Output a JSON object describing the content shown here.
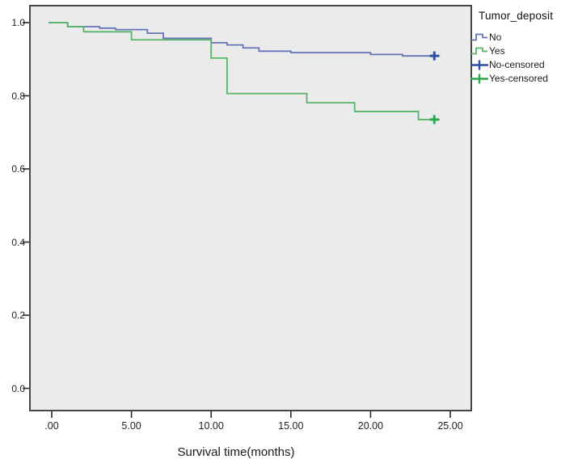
{
  "chart_data": {
    "type": "line",
    "chart_style": "kaplan-meier-step",
    "title": "",
    "xlabel": "Survival time(months)",
    "ylabel": "",
    "grid": false,
    "plot_background": "#ebebeb",
    "axis_color": "#464646",
    "legend_position": "outside-top-right",
    "x_ticks": [
      0,
      5,
      10,
      15,
      20,
      25
    ],
    "x_tick_labels": [
      ".00",
      "5.00",
      "10.00",
      "15.00",
      "20.00",
      "25.00"
    ],
    "y_ticks": [
      1.0,
      0.8,
      0.6,
      0.4,
      0.2,
      0.0
    ],
    "y_tick_labels": [
      "1.0",
      "0.8",
      "0.6",
      "0.4",
      "0.2",
      "0.0"
    ],
    "xlim": [
      -1.4,
      26.4
    ],
    "ylim": [
      -0.06,
      1.05
    ],
    "series": [
      {
        "name": "No",
        "color": "#6674b8",
        "censor_color": "#2e4da0",
        "line_end_x": 24.35,
        "points": [
          [
            0,
            1.0
          ],
          [
            1,
            0.989
          ],
          [
            3,
            0.985
          ],
          [
            4,
            0.981
          ],
          [
            6,
            0.971
          ],
          [
            7,
            0.957
          ],
          [
            10,
            0.945
          ],
          [
            11,
            0.939
          ],
          [
            12,
            0.931
          ],
          [
            13,
            0.922
          ],
          [
            15,
            0.918
          ],
          [
            20,
            0.913
          ],
          [
            22,
            0.909
          ]
        ],
        "censored": [
          [
            24,
            0.909
          ]
        ]
      },
      {
        "name": "Yes",
        "color": "#56b566",
        "censor_color": "#2fa653",
        "line_end_x": 24.35,
        "points": [
          [
            0,
            1.0
          ],
          [
            1,
            0.989
          ],
          [
            2,
            0.975
          ],
          [
            5,
            0.953
          ],
          [
            10,
            0.903
          ],
          [
            11,
            0.806
          ],
          [
            16,
            0.781
          ],
          [
            19,
            0.757
          ],
          [
            23,
            0.735
          ]
        ],
        "censored": [
          [
            24,
            0.735
          ]
        ]
      }
    ]
  },
  "legend": {
    "title": "Tumor_deposit",
    "items": [
      {
        "label": "No",
        "marker": "step-line",
        "color": "#6674b8"
      },
      {
        "label": "Yes",
        "marker": "step-line",
        "color": "#56b566"
      },
      {
        "label": "No-censored",
        "marker": "plus",
        "color": "#2e4da0"
      },
      {
        "label": "Yes-censored",
        "marker": "plus",
        "color": "#2fa653"
      }
    ]
  }
}
